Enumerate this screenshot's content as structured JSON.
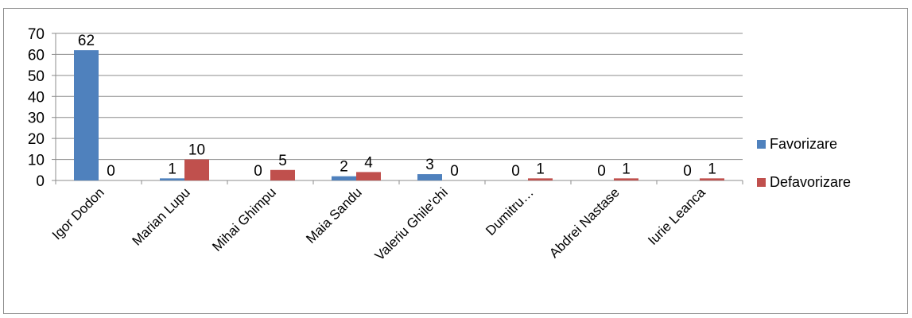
{
  "chart_data": {
    "type": "bar",
    "categories": [
      "Igor Dodon",
      "Marian Lupu",
      "Mihai Ghimpu",
      "Maia Sandu",
      "Valeriu Ghile'chi",
      "Dumitru…",
      "Abdrei Nastase",
      "Iurie Leanca"
    ],
    "series": [
      {
        "name": "Favorizare",
        "color": "#4f81bd",
        "values": [
          62,
          1,
          0,
          2,
          3,
          0,
          0,
          0
        ]
      },
      {
        "name": "Defavorizare",
        "color": "#c0504d",
        "values": [
          0,
          10,
          5,
          4,
          0,
          1,
          1,
          1
        ]
      }
    ],
    "ylim": [
      0,
      70
    ],
    "yticks": [
      0,
      10,
      20,
      30,
      40,
      50,
      60,
      70
    ],
    "grid": true,
    "legend_position": "right",
    "title": "",
    "xlabel": "",
    "ylabel": ""
  }
}
